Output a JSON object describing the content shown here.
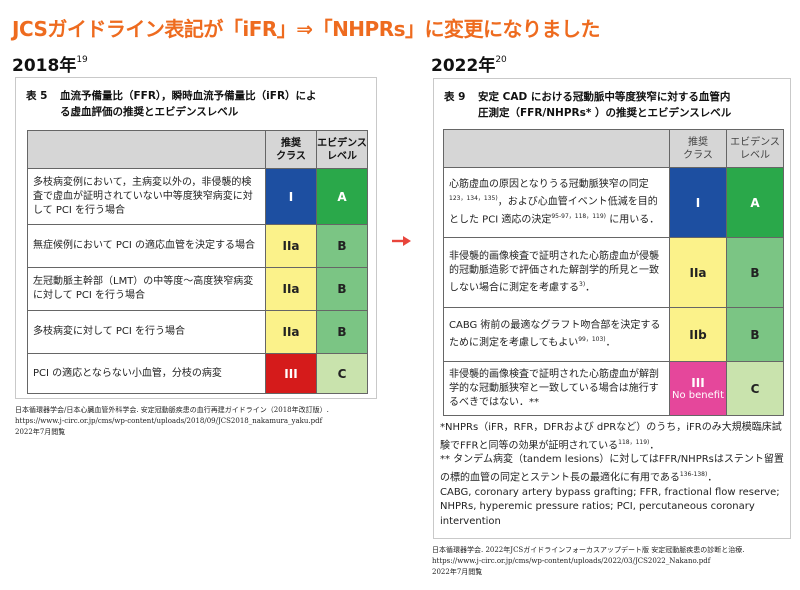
{
  "headline": "JCSガイドライン表記が「iFR」⇒「NHPRs」に変更になりました",
  "left": {
    "year": "2018年",
    "year_ref": "19",
    "table_no": "表 5",
    "title_line1": "血流予備量比（FFR），瞬時血流予備量比（iFR）によ",
    "title_line2": "る虚血評価の推奨とエビデンスレベル",
    "col_class": "推奨\nクラス",
    "col_evidence": "エビデンス\nレベル",
    "rows": [
      {
        "text": "多枝病変例において，主病変以外の，非侵襲的検査で虚血が証明されていない中等度狭窄病変に対して PCI を行う場合",
        "cls": "I",
        "ev": "A",
        "cls_color": "#1d4fa1",
        "ev_color": "#2aa84a"
      },
      {
        "text": "無症候例において PCI の適応血管を決定する場合",
        "cls": "IIa",
        "ev": "B",
        "cls_color": "#fbf28a",
        "ev_color": "#7bc584"
      },
      {
        "text": "左冠動脈主幹部（LMT）の中等度～高度狭窄病変に対して PCI を行う場合",
        "cls": "IIa",
        "ev": "B",
        "cls_color": "#fbf28a",
        "ev_color": "#7bc584"
      },
      {
        "text": "多枝病変に対して PCI を行う場合",
        "cls": "IIa",
        "ev": "B",
        "cls_color": "#fbf28a",
        "ev_color": "#7bc584"
      },
      {
        "text": "PCI の適応とならない小血管，分枝の病変",
        "cls": "III",
        "ev": "C",
        "cls_color": "#d51b1b",
        "ev_color": "#c9e3ad"
      }
    ],
    "source": "日本循環器学会/日本心臓血管外科学会. 安定冠動脈疾患の血行再建ガイドライン（2018年改訂版）.\nhttps://www.j-circ.or.jp/cms/wp-content/uploads/2018/09/JCS2018_nakamura_yaku.pdf\n2022年7月閲覧"
  },
  "right": {
    "year": "2022年",
    "year_ref": "20",
    "table_no": "表 9",
    "title_line1": "安定 CAD における冠動脈中等度狭窄に対する血管内",
    "title_line2": "圧測定（FFR/NHPRs* ）の推奨とエビデンスレベル",
    "col_class": "推奨\nクラス",
    "col_evidence": "エビデンス\nレベル",
    "rows": [
      {
        "text": "心筋虚血の原因となりうる冠動脈狭窄の同定",
        "sup1": "123，134，135)",
        "text2": "，および心血管イベント低減を目的とした PCI 適応の決定",
        "sup2": "95-97，118，119)",
        "text3": " に用いる．",
        "cls": "I",
        "cls2": "",
        "ev": "A",
        "cls_color": "#1d4fa1",
        "ev_color": "#2aa84a"
      },
      {
        "text": "非侵襲的画像検査で証明された心筋虚血が侵襲的冠動脈造影で評価された解剖学的所見と一致しない場合に測定を考慮する",
        "sup1": "3)",
        "text2": "．",
        "sup2": "",
        "text3": "",
        "cls": "IIa",
        "cls2": "",
        "ev": "B",
        "cls_color": "#fbf28a",
        "ev_color": "#7bc584"
      },
      {
        "text": "CABG 術前の最適なグラフト吻合部を決定するために測定を考慮してもよい",
        "sup1": "99，103)",
        "text2": "．",
        "sup2": "",
        "text3": "",
        "cls": "IIb",
        "cls2": "",
        "ev": "B",
        "cls_color": "#fbf28a",
        "ev_color": "#7bc584"
      },
      {
        "text": "非侵襲的画像検査で証明された心筋虚血が解剖学的な冠動脈狭窄と一致している場合は施行するべきではない．**",
        "sup1": "",
        "text2": "",
        "sup2": "",
        "text3": "",
        "cls": "III",
        "cls2": "No benefit",
        "ev": "C",
        "cls_color": "#e5479b",
        "ev_color": "#c9e3ad"
      }
    ],
    "note1": "*NHPRs（iFR，RFR，DFRおよび dPRなど）のうち，iFRのみ大規模臨床試験でFFRと同等の効果が証明されている",
    "note1_sup": "118，119)",
    "note1_end": "．",
    "note2": "** タンデム病変（tandem lesions）に対してはFFR/NHPRsはステント留置の標的血管の同定とステント長の最適化に有用である",
    "note2_sup": "136-138)",
    "note2_end": "．",
    "note3": "CABG, coronary artery bypass grafting; FFR, fractional flow reserve; NHPRs, hyperemic pressure ratios; PCI, percutaneous coronary intervention",
    "source": "日本循環器学会. 2022年JCSガイドラインフォーカスアップデート版 安定冠動脈疾患の診断と治療.\nhttps://www.j-circ.or.jp/cms/wp-content/uploads/2022/03/JCS2022_Nakano.pdf\n2022年7月閲覧"
  },
  "arrow_color": "#e8453c"
}
